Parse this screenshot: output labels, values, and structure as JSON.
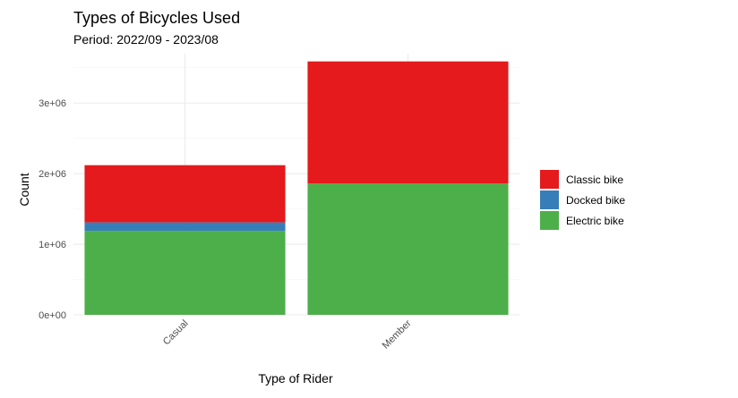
{
  "chart_data": {
    "type": "bar",
    "stacked": true,
    "title": "Types of Bicycles Used",
    "subtitle": "Period: 2022/09 - 2023/08",
    "xlabel": "Type of Rider",
    "ylabel": "Count",
    "categories": [
      "Casual",
      "Member"
    ],
    "series": [
      {
        "name": "Electric bike",
        "color": "#4daf4a",
        "values": [
          1190000,
          1860000
        ]
      },
      {
        "name": "Docked bike",
        "color": "#377eb8",
        "values": [
          120000,
          0
        ]
      },
      {
        "name": "Classic bike",
        "color": "#e41a1c",
        "values": [
          810000,
          1730000
        ]
      }
    ],
    "legend_order": [
      "Classic bike",
      "Docked bike",
      "Electric bike"
    ],
    "ylim": [
      0,
      3700000
    ],
    "y_ticks": [
      0,
      1000000,
      2000000,
      3000000
    ],
    "y_tick_labels": [
      "0e+00",
      "1e+06",
      "2e+06",
      "3e+06"
    ],
    "grid": true,
    "legend_position": "right"
  }
}
